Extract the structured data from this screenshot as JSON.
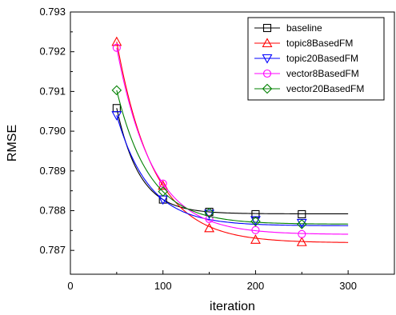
{
  "chart_data": {
    "type": "line",
    "xlabel": "iteration",
    "ylabel": "RMSE",
    "xlim": [
      0,
      350
    ],
    "ylim": [
      0.7864,
      0.793
    ],
    "xticks": [
      0,
      100,
      200,
      300
    ],
    "yticks": [
      0.787,
      0.788,
      0.789,
      0.79,
      0.791,
      0.792,
      0.793
    ],
    "legend_position": "top-right",
    "grid": false,
    "series": [
      {
        "name": "baseline",
        "color": "#000000",
        "marker": "square",
        "x": [
          50,
          100,
          150,
          200,
          250
        ],
        "y": [
          0.79058,
          0.78828,
          0.78797,
          0.78791,
          0.78791
        ],
        "asymptote": 0.78792
      },
      {
        "name": "topic8BasedFM",
        "color": "#ff0000",
        "marker": "triangle-up",
        "x": [
          50,
          100,
          150,
          200,
          250
        ],
        "y": [
          0.79225,
          0.78863,
          0.78756,
          0.78727,
          0.78721
        ],
        "asymptote": 0.78719
      },
      {
        "name": "topic20BasedFM",
        "color": "#0000ff",
        "marker": "triangle-down",
        "x": [
          50,
          100,
          150,
          200,
          250
        ],
        "y": [
          0.7904,
          0.78828,
          0.78792,
          0.78776,
          0.78769
        ],
        "asymptote": 0.78762
      },
      {
        "name": "vector8BasedFM",
        "color": "#ff00ff",
        "marker": "circle",
        "x": [
          50,
          100,
          150,
          200,
          250
        ],
        "y": [
          0.7921,
          0.78868,
          0.78779,
          0.78751,
          0.78741
        ],
        "asymptote": 0.7874
      },
      {
        "name": "vector20BasedFM",
        "color": "#008000",
        "marker": "diamond",
        "x": [
          50,
          100,
          150,
          200,
          250
        ],
        "y": [
          0.79103,
          0.78848,
          0.78795,
          0.78773,
          0.78766
        ],
        "asymptote": 0.78766
      }
    ]
  }
}
